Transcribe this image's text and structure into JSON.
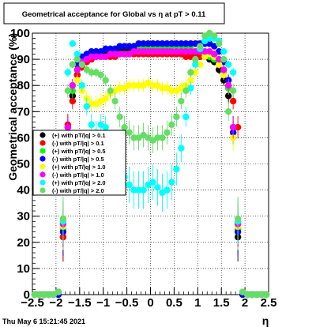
{
  "chart_data": {
    "type": "scatter",
    "title": "Geometrical acceptance for Global vs  η at pT > 0.11",
    "xlabel": "η",
    "ylabel": "Geometrical acceptance (%)",
    "xlim": [
      -2.5,
      2.5
    ],
    "ylim": [
      0,
      100
    ],
    "x_ticks": [
      -2.5,
      -2,
      -1.5,
      -1,
      -0.5,
      0,
      0.5,
      1,
      1.5,
      2,
      2.5
    ],
    "x_tick_labels": [
      "−2.5",
      "−2",
      "−1.5",
      "−1",
      "−0.5",
      "0",
      "0.5",
      "1",
      "1.5",
      "2",
      "2.5"
    ],
    "y_ticks": [
      0,
      10,
      20,
      30,
      40,
      50,
      60,
      70,
      80,
      90,
      100
    ],
    "y_tick_labels": [
      "0",
      "10",
      "20",
      "30",
      "40",
      "50",
      "60",
      "70",
      "80",
      "90",
      "100"
    ],
    "grid": true,
    "legend_position": "center-left",
    "x": [
      -2.45,
      -2.35,
      -2.25,
      -2.15,
      -2.05,
      -1.95,
      -1.85,
      -1.75,
      -1.65,
      -1.55,
      -1.45,
      -1.35,
      -1.25,
      -1.15,
      -1.05,
      -0.95,
      -0.85,
      -0.75,
      -0.65,
      -0.55,
      -0.45,
      -0.35,
      -0.25,
      -0.15,
      -0.05,
      0.05,
      0.15,
      0.25,
      0.35,
      0.45,
      0.55,
      0.65,
      0.75,
      0.85,
      0.95,
      1.05,
      1.15,
      1.25,
      1.35,
      1.45,
      1.55,
      1.65,
      1.75,
      1.85,
      1.95,
      2.05,
      2.15,
      2.25,
      2.35,
      2.45
    ],
    "series": [
      {
        "name": "(+) with pT/|q| > 0.1",
        "color": "#000000",
        "values": [
          0,
          0,
          0,
          0,
          0,
          1,
          22,
          64,
          76,
          84,
          88,
          90,
          91,
          92,
          92,
          93,
          93,
          93,
          94,
          94,
          94,
          94,
          94,
          94,
          94,
          94,
          94,
          94,
          94,
          94,
          93,
          93,
          93,
          92,
          92,
          91,
          91,
          90,
          89,
          86,
          82,
          76,
          64,
          22,
          1,
          0,
          0,
          0,
          0,
          0
        ]
      },
      {
        "name": "(-) with pT/|q| > 0.1",
        "color": "#ff0000",
        "values": [
          0,
          0,
          0,
          0,
          0,
          1,
          22,
          65,
          74,
          84,
          87,
          89,
          90,
          91,
          91,
          91,
          91,
          91,
          92,
          92,
          92,
          92,
          92,
          92,
          92,
          92,
          92,
          92,
          92,
          92,
          92,
          92,
          91,
          91,
          91,
          91,
          91,
          91,
          90,
          88,
          84,
          79,
          74,
          64,
          1,
          0,
          0,
          0,
          0,
          0
        ]
      },
      {
        "name": "(+) with pT/|q| > 0.5",
        "color": "#00ff00",
        "values": [
          0,
          0,
          0,
          0,
          0,
          1,
          25,
          62,
          78,
          86,
          89,
          91,
          92,
          93,
          93,
          94,
          94,
          94,
          95,
          95,
          95,
          95,
          95,
          95,
          95,
          95,
          95,
          95,
          95,
          95,
          94,
          94,
          94,
          94,
          93,
          93,
          92,
          91,
          90,
          88,
          85,
          79,
          62,
          25,
          1,
          0,
          0,
          0,
          0,
          0
        ]
      },
      {
        "name": "(-) with pT/|q| > 0.5",
        "color": "#0000ff",
        "values": [
          0,
          0,
          0,
          0,
          0,
          0,
          24,
          62,
          80,
          88,
          91,
          92,
          93,
          93,
          93,
          94,
          94,
          94,
          95,
          95,
          95,
          95,
          96,
          96,
          96,
          96,
          96,
          96,
          96,
          96,
          96,
          96,
          96,
          96,
          96,
          96,
          96,
          96,
          95,
          93,
          89,
          82,
          62,
          24,
          0,
          0,
          0,
          0,
          0,
          0
        ]
      },
      {
        "name": "(+) with pT/|q| > 1.0",
        "color": "#ffff00",
        "values": [
          0,
          0,
          0,
          0,
          0,
          1,
          26,
          60,
          80,
          82,
          78,
          75,
          73,
          73,
          74,
          75,
          77,
          78,
          79,
          79,
          80,
          80,
          80,
          80,
          81,
          80,
          80,
          79,
          79,
          78,
          78,
          79,
          80,
          82,
          85,
          88,
          91,
          92,
          91,
          88,
          84,
          80,
          60,
          26,
          1,
          0,
          0,
          0,
          0,
          0
        ]
      },
      {
        "name": "(-) with pT/|q| > 1.0",
        "color": "#ff00ff",
        "values": [
          0,
          0,
          0,
          0,
          0,
          1,
          27,
          64,
          80,
          86,
          89,
          90,
          91,
          91,
          91,
          91,
          92,
          92,
          92,
          92,
          92,
          93,
          93,
          93,
          93,
          93,
          93,
          93,
          93,
          93,
          93,
          93,
          93,
          93,
          93,
          93,
          93,
          93,
          92,
          90,
          86,
          80,
          64,
          27,
          1,
          0,
          0,
          0,
          0,
          0
        ]
      },
      {
        "name": "(+) with pT/|q| > 2.0",
        "color": "#00ffff",
        "values": [
          0,
          0,
          0,
          0,
          0,
          1,
          28,
          85,
          96,
          92,
          80,
          72,
          65,
          62,
          65,
          64,
          58,
          52,
          48,
          45,
          42,
          40,
          40,
          40,
          42,
          43,
          41,
          39,
          40,
          43,
          48,
          56,
          68,
          79,
          88,
          94,
          97,
          98,
          98,
          97,
          93,
          88,
          85,
          28,
          1,
          0,
          0,
          0,
          0,
          0
        ]
      },
      {
        "name": "(-) with pT/|q| > 2.0",
        "color": "#66dd66",
        "values": [
          0,
          0,
          0,
          0,
          0,
          1,
          29,
          78,
          88,
          90,
          88,
          86,
          85,
          85,
          84,
          82,
          78,
          74,
          68,
          64,
          62,
          60,
          60,
          61,
          60,
          59,
          60,
          60,
          62,
          65,
          68,
          74,
          78,
          85,
          90,
          95,
          99,
          100,
          99,
          96,
          90,
          70,
          78,
          29,
          1,
          0,
          0,
          0,
          0,
          0
        ]
      }
    ],
    "footer": "Thu May  6 15:21:45 2021"
  }
}
